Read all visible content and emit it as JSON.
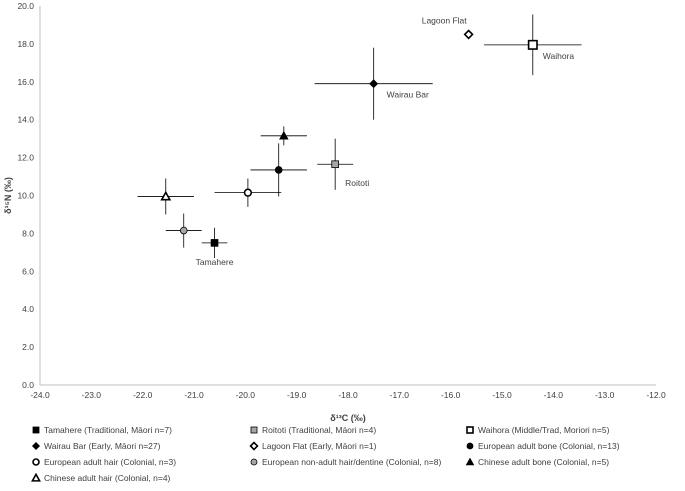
{
  "chart_data": {
    "type": "scatter",
    "xlabel": "δ¹³C (‰)",
    "ylabel": "δ¹⁵N (‰)",
    "xlim": [
      -24.0,
      -12.0
    ],
    "ylim": [
      0.0,
      20.0
    ],
    "x_ticks": [
      "-24.0",
      "-23.0",
      "-22.0",
      "-21.0",
      "-20.0",
      "-19.0",
      "-18.0",
      "-17.0",
      "-16.0",
      "-15.0",
      "-14.0",
      "-13.0",
      "-12.0"
    ],
    "y_ticks": [
      "0.0",
      "2.0",
      "4.0",
      "6.0",
      "8.0",
      "10.0",
      "12.0",
      "14.0",
      "16.0",
      "18.0",
      "20.0"
    ],
    "grid": false,
    "legend_position": "bottom",
    "series": [
      {
        "name": "Tamahere (Traditional, Māori n=7)",
        "marker": "square",
        "fill": "#000000",
        "x": -20.6,
        "y": 7.5,
        "x_err": [
          0.25,
          0.25
        ],
        "y_err": [
          0.8,
          0.8
        ],
        "label": "Tamahere"
      },
      {
        "name": "Roitoti (Traditional, Māori n=4)",
        "marker": "square",
        "fill": "#a6a6a6",
        "x": -18.25,
        "y": 11.65,
        "x_err": [
          0.35,
          0.35
        ],
        "y_err": [
          1.35,
          1.35
        ],
        "label": "Roitoti"
      },
      {
        "name": "Waihora (Middle/Trad, Moriori n=5)",
        "marker": "square-open",
        "fill": "#ffffff",
        "x": -14.4,
        "y": 17.95,
        "x_err": [
          0.95,
          0.95
        ],
        "y_err": [
          1.6,
          1.6
        ],
        "label": "Waihora"
      },
      {
        "name": "Wairau Bar (Early, Māori n=27)",
        "marker": "diamond",
        "fill": "#000000",
        "x": -17.5,
        "y": 15.9,
        "x_err": [
          1.15,
          1.15
        ],
        "y_err": [
          1.9,
          1.9
        ],
        "label": "Wairau Bar"
      },
      {
        "name": "Lagoon Flat (Early, Māori n=1)",
        "marker": "diamond-open",
        "fill": "#ffffff",
        "x": -15.65,
        "y": 18.5,
        "x_err": [
          0,
          0
        ],
        "y_err": [
          0,
          0
        ],
        "label": "Lagoon Flat"
      },
      {
        "name": "European adult bone (Colonial, n=13)",
        "marker": "circle",
        "fill": "#000000",
        "x": -19.35,
        "y": 11.35,
        "x_err": [
          0.55,
          0.55
        ],
        "y_err": [
          1.4,
          1.4
        ],
        "label": ""
      },
      {
        "name": "European adult hair (Colonial, n=3)",
        "marker": "circle-open",
        "fill": "#ffffff",
        "x": -19.95,
        "y": 10.15,
        "x_err": [
          0.65,
          0.65
        ],
        "y_err": [
          0.75,
          0.75
        ],
        "label": ""
      },
      {
        "name": "European non-adult hair/dentine (Colonial, n=8)",
        "marker": "circle",
        "fill": "#a6a6a6",
        "x": -21.2,
        "y": 8.15,
        "x_err": [
          0.35,
          0.35
        ],
        "y_err": [
          0.9,
          0.9
        ],
        "label": ""
      },
      {
        "name": "Chinese adult bone (Colonial, n=5)",
        "marker": "triangle",
        "fill": "#000000",
        "x": -19.25,
        "y": 13.15,
        "x_err": [
          0.45,
          0.45
        ],
        "y_err": [
          0.5,
          0.5
        ],
        "label": ""
      },
      {
        "name": "Chinese adult hair (Colonial, n=4)",
        "marker": "triangle-open",
        "fill": "#ffffff",
        "x": -21.55,
        "y": 9.95,
        "x_err": [
          0.55,
          0.55
        ],
        "y_err": [
          0.95,
          0.95
        ],
        "label": ""
      }
    ]
  }
}
